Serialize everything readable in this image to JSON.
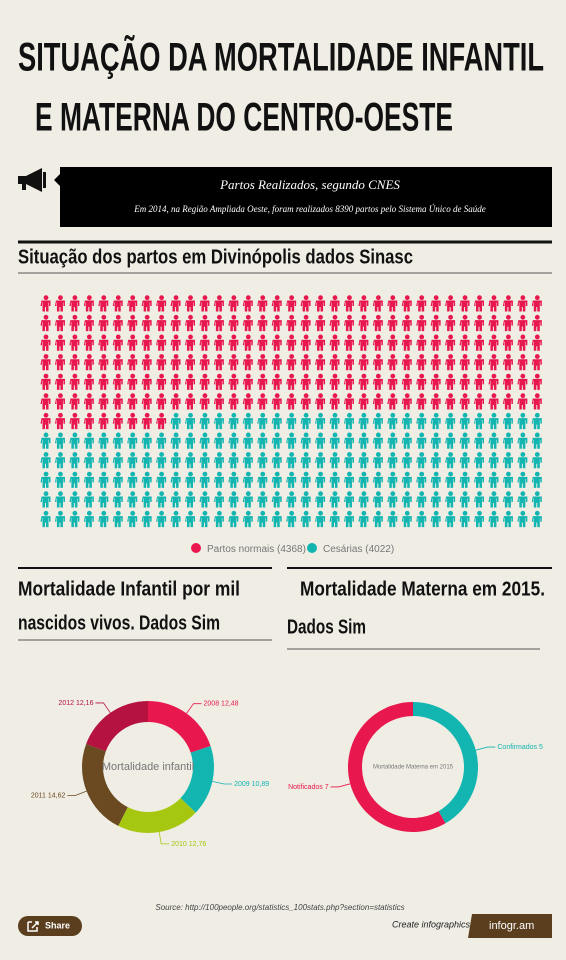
{
  "header": {
    "title": [
      "SITUAÇÃO DA MORTALIDADE INFANTIL",
      "E MATERNA DO CENTRO-OESTE"
    ]
  },
  "banner": {
    "title": "Partos Realizados, segundo CNES",
    "text": "Em 2014, na Região Ampliada Oeste, foram realizados 8390 partos pelo Sistema Único de Saúde"
  },
  "chart_data": [
    {
      "type": "pictogram",
      "title": [
        "Situação dos partos em Divinópolis dados Sinasc"
      ],
      "series": [
        {
          "name": "Partos normais",
          "color": "#e8184f",
          "values": [
            4368
          ],
          "value_labels": [
            "(4368)"
          ]
        },
        {
          "name": "Cesárias",
          "color": "#12b5b0",
          "values": [
            4022
          ],
          "value_labels": [
            "(4022)"
          ]
        }
      ]
    },
    {
      "type": "donut",
      "title": [
        "Mortalidade Infantil por mil",
        "nascidos vivos. Dados Sim"
      ],
      "center_label": "Mortalidade infantil",
      "categories": [
        "2008",
        "2009",
        "2010",
        "2011",
        "2012"
      ],
      "values": [
        12.48,
        10.89,
        12.76,
        14.62,
        12.16
      ],
      "value_labels": [
        "12,48",
        "10,89",
        "12,76",
        "14,62",
        "12,16"
      ],
      "colors": [
        "#e8184f",
        "#12b5b0",
        "#a6c70f",
        "#6b4a22",
        "#b5123f"
      ]
    },
    {
      "type": "donut",
      "title": [
        "Mortalidade Materna em 2015.",
        "Dados Sim"
      ],
      "center_label": "Mortalidade Materna em 2015",
      "categories": [
        "Confirmados",
        "Notificados"
      ],
      "values": [
        5,
        7
      ],
      "colors": [
        "#12b5b0",
        "#e8184f"
      ]
    }
  ],
  "footer": {
    "source": "Source: http://100people.org/statistics_100stats.php?section=statistics",
    "share": "Share",
    "create": "Create infographics",
    "brand": "infogr.am"
  }
}
